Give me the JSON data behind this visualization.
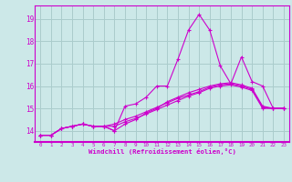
{
  "title": "",
  "xlabel": "Windchill (Refroidissement éolien,°C)",
  "ylabel": "",
  "background_color": "#cce8e8",
  "grid_color": "#aacccc",
  "line_color": "#cc00cc",
  "xlim": [
    -0.5,
    23.5
  ],
  "ylim": [
    13.5,
    19.6
  ],
  "xticks": [
    0,
    1,
    2,
    3,
    4,
    5,
    6,
    7,
    8,
    9,
    10,
    11,
    12,
    13,
    14,
    15,
    16,
    17,
    18,
    19,
    20,
    21,
    22,
    23
  ],
  "yticks": [
    14,
    15,
    16,
    17,
    18,
    19
  ],
  "series": [
    {
      "x": [
        0,
        1,
        2,
        3,
        4,
        5,
        6,
        7,
        8,
        9,
        10,
        11,
        12,
        13,
        14,
        15,
        16,
        17,
        18,
        19,
        20,
        21,
        22,
        23
      ],
      "y": [
        13.8,
        13.8,
        14.1,
        14.2,
        14.3,
        14.2,
        14.2,
        14.0,
        15.1,
        15.2,
        15.5,
        16.0,
        16.0,
        17.2,
        18.5,
        19.2,
        18.5,
        16.9,
        16.1,
        17.3,
        16.2,
        16.0,
        15.0,
        15.0
      ]
    },
    {
      "x": [
        0,
        1,
        2,
        3,
        4,
        5,
        6,
        7,
        8,
        9,
        10,
        11,
        12,
        13,
        14,
        15,
        16,
        17,
        18,
        19,
        20,
        21,
        22,
        23
      ],
      "y": [
        13.8,
        13.8,
        14.1,
        14.2,
        14.3,
        14.2,
        14.2,
        14.0,
        14.3,
        14.5,
        14.8,
        15.0,
        15.3,
        15.5,
        15.7,
        15.85,
        16.0,
        16.1,
        16.15,
        16.05,
        15.9,
        15.1,
        15.0,
        15.0
      ]
    },
    {
      "x": [
        0,
        1,
        2,
        3,
        4,
        5,
        6,
        7,
        8,
        9,
        10,
        11,
        12,
        13,
        14,
        15,
        16,
        17,
        18,
        19,
        20,
        21,
        22,
        23
      ],
      "y": [
        13.8,
        13.8,
        14.1,
        14.2,
        14.3,
        14.2,
        14.2,
        14.3,
        14.5,
        14.65,
        14.85,
        15.05,
        15.25,
        15.45,
        15.6,
        15.75,
        15.95,
        16.05,
        16.1,
        16.0,
        15.85,
        15.05,
        15.0,
        15.0
      ]
    },
    {
      "x": [
        0,
        1,
        2,
        3,
        4,
        5,
        6,
        7,
        8,
        9,
        10,
        11,
        12,
        13,
        14,
        15,
        16,
        17,
        18,
        19,
        20,
        21,
        22,
        23
      ],
      "y": [
        13.8,
        13.8,
        14.1,
        14.2,
        14.3,
        14.2,
        14.2,
        14.2,
        14.4,
        14.55,
        14.75,
        14.95,
        15.15,
        15.35,
        15.55,
        15.7,
        15.9,
        16.0,
        16.05,
        15.95,
        15.8,
        15.0,
        15.0,
        15.0
      ]
    }
  ]
}
